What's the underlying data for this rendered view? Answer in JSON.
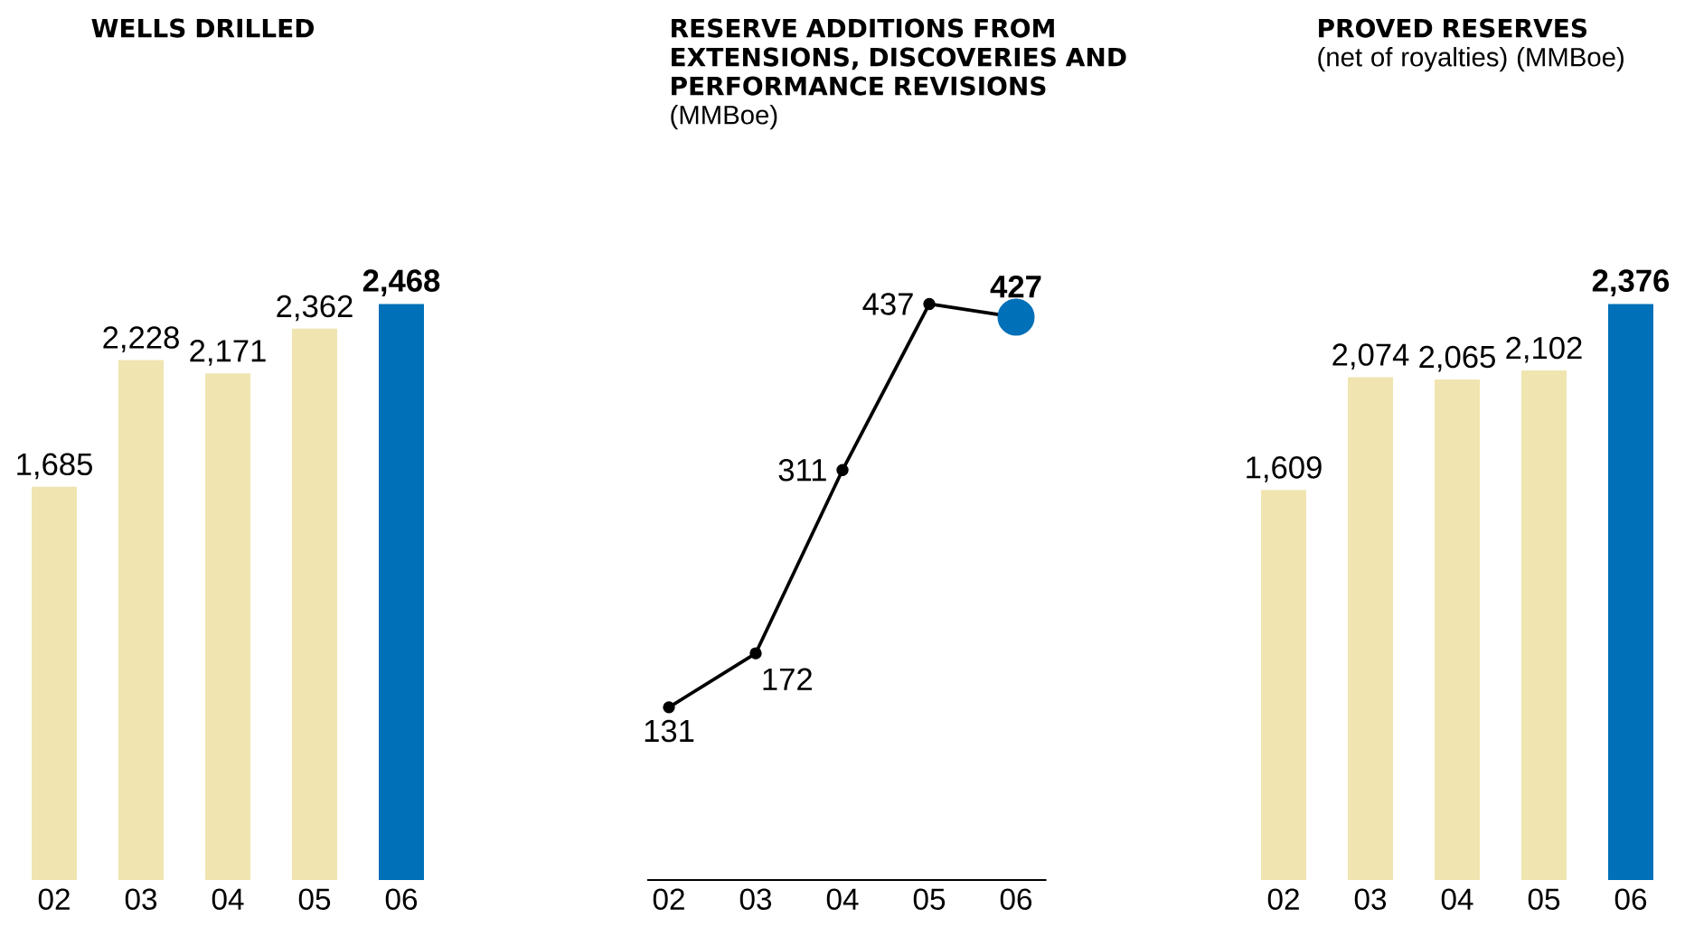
{
  "chart_data": [
    {
      "type": "bar",
      "title": "WELLS DRILLED",
      "categories": [
        "02",
        "03",
        "04",
        "05",
        "06"
      ],
      "values": [
        1685,
        2228,
        2171,
        2362,
        2468
      ],
      "colors": [
        "#f0e4b0",
        "#f0e4b0",
        "#f0e4b0",
        "#f0e4b0",
        "#0070b8"
      ],
      "value_labels": [
        "1,685",
        "2,228",
        "2,171",
        "2,362",
        "**2,468**"
      ],
      "tick_labels": "x"
    },
    {
      "type": "line",
      "title": "RESERVE ADDITIONS FROM EXTENSIONS, DISCOVERIES AND PERFORMANCE REVISIONS",
      "subtitle": "(MMBoe)",
      "categories": [
        "02",
        "03",
        "04",
        "05",
        "06"
      ],
      "values": [
        131,
        172,
        311,
        437,
        427
      ],
      "color": "#000000",
      "colors": [
        "#000000",
        "#000000",
        "#000000",
        "#000000",
        "#0070b8"
      ],
      "marker": "circle",
      "value_labels": [
        "131",
        "172",
        "311",
        "437",
        "**427**"
      ],
      "tick_labels": "x"
    },
    {
      "type": "bar",
      "title": "PROVED RESERVES",
      "subtitle": "(net of royalties) (MMBoe)",
      "categories": [
        "02",
        "03",
        "04",
        "05",
        "06"
      ],
      "values": [
        1609,
        2074,
        2065,
        2102,
        2376
      ],
      "colors": [
        "#f0e4b0",
        "#f0e4b0",
        "#f0e4b0",
        "#f0e4b0",
        "#0070b8"
      ],
      "value_labels": [
        "1,609",
        "2,074",
        "2,065",
        "2,102",
        "**2,376**"
      ],
      "tick_labels": "x"
    }
  ]
}
